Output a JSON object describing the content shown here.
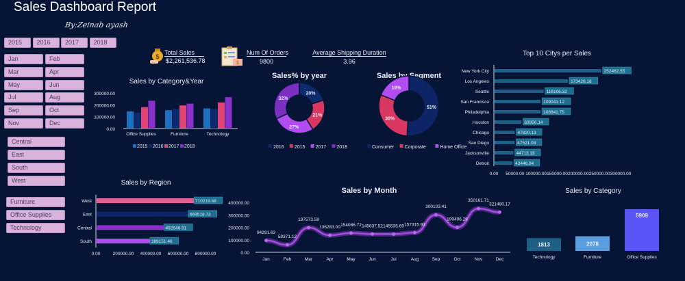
{
  "header": {
    "title": "Sales Dashboard Report",
    "author": "By:Zeinab ayash"
  },
  "filters": {
    "years": [
      "2015",
      "2016",
      "2017",
      "2018"
    ],
    "months": [
      "Jan",
      "Feb",
      "Mar",
      "Apr",
      "May",
      "Jun",
      "Jul",
      "Aug",
      "Sep",
      "Oct",
      "Nov",
      "Dec"
    ],
    "regions": [
      "Central",
      "East",
      "South",
      "West"
    ],
    "categories": [
      "Furniture",
      "Office Supplies",
      "Technology"
    ]
  },
  "kpis": {
    "total_sales": {
      "label": "Total Sales",
      "value": "$2,261,536.78",
      "icon": "money-bag-icon"
    },
    "orders": {
      "label": "Num Of Orders",
      "value": "9800",
      "icon": "clipboard-icon"
    },
    "shipping": {
      "label": "Average Shipping Duration",
      "value": "3.96"
    }
  },
  "colors": {
    "bg": "#061536",
    "2015": "#1f6fc0",
    "2016": "#0d2a6e",
    "2017": "#e0457a",
    "2018": "#8a2fc9",
    "purple_light": "#b04cf0",
    "teal": "#1e6f8f"
  },
  "chart_data": [
    {
      "type": "bar",
      "title": "Sales by Category&Year",
      "categories": [
        "Office Supplies",
        "Furniture",
        "Technology"
      ],
      "series": [
        {
          "name": "2015",
          "values": [
            145000,
            155000,
            170000
          ]
        },
        {
          "name": "2016",
          "values": [
            135000,
            165000,
            165000
          ]
        },
        {
          "name": "2017",
          "values": [
            180000,
            195000,
            220000
          ]
        },
        {
          "name": "2018",
          "values": [
            235000,
            210000,
            265000
          ]
        }
      ],
      "yticks": [
        "0.00",
        "100000.00",
        "200000.00",
        "300000.00"
      ],
      "ylim": [
        0,
        300000
      ],
      "legend": "bottom"
    },
    {
      "type": "pie",
      "title": "Sales% by year",
      "labels": [
        "2016",
        "2015",
        "2017",
        "2018"
      ],
      "values": [
        20,
        21,
        27,
        32
      ],
      "display": [
        "20%",
        "21%",
        "27%",
        "32%"
      ],
      "legend": "bottom"
    },
    {
      "type": "pie",
      "title": "Sales by Segment",
      "labels": [
        "Consumer",
        "Corporate",
        "Home Office"
      ],
      "values": [
        51,
        30,
        19
      ],
      "display": [
        "51%",
        "30%",
        "19%"
      ],
      "legend": "bottom"
    },
    {
      "type": "bar",
      "title": "Top 10 Citys per Sales",
      "orientation": "horizontal",
      "categories": [
        "New York City",
        "Los Angeles",
        "Seattle",
        "San Francisco",
        "Philadelphia",
        "Houston",
        "Chicago",
        "San Diego",
        "Jacksonville",
        "Detroit"
      ],
      "values": [
        252462.55,
        173420.18,
        116106.32,
        109041.12,
        108841.75,
        63956.14,
        47820.13,
        47521.03,
        44713.18,
        42446.94
      ],
      "labels": [
        "252462.55",
        "173420.18",
        "116106.32",
        "109041.12",
        "108841.75",
        "63956.14",
        "47820.13",
        "47521.03",
        "44713.18",
        "42446.94"
      ],
      "xticks": [
        "0.00",
        "50000.00",
        "100000.00",
        "150000.00",
        "200000.00",
        "250000.00",
        "300000.00"
      ],
      "xlim": [
        0,
        300000
      ]
    },
    {
      "type": "bar",
      "title": "Sales by Region",
      "orientation": "horizontal",
      "categories": [
        "West",
        "East",
        "Central",
        "South"
      ],
      "values": [
        710219.68,
        669518.73,
        492646.91,
        389151.46
      ],
      "labels": [
        "710219.68",
        "669518.73",
        "492646.91",
        "389151.46"
      ],
      "xticks": [
        "0.00",
        "200000.00",
        "400000.00",
        "600000.00",
        "800000.00"
      ],
      "xlim": [
        0,
        800000
      ]
    },
    {
      "type": "line",
      "title": "Sales by Month",
      "categories": [
        "Jan",
        "Feb",
        "Mar",
        "Apr",
        "May",
        "Jun",
        "Jul",
        "Aug",
        "Sep",
        "Oct",
        "Nov",
        "Dec"
      ],
      "values": [
        94291.63,
        59371.12,
        197573.59,
        136283.0,
        154086.72,
        145837.52,
        145535.69,
        157315.93,
        300103.41,
        199496.28,
        350161.71,
        321480.17
      ],
      "labels": [
        "94291.63",
        "59371.12",
        "197573.59",
        "136283.00",
        "154086.72",
        "145837.52",
        "145535.69",
        "157315.93",
        "300103.41",
        "199496.28",
        "350161.71",
        "321480.17"
      ],
      "yticks": [
        "0.00",
        "100000.00",
        "200000.00",
        "300000.00",
        "400000.00"
      ],
      "ylim": [
        0,
        400000
      ]
    },
    {
      "type": "bar",
      "title": "Sales by Category",
      "categories": [
        "Technology",
        "Furniture",
        "Office Supplies"
      ],
      "values": [
        1813,
        2078,
        5909
      ],
      "labels": [
        "1813",
        "2078",
        "5909"
      ]
    }
  ]
}
